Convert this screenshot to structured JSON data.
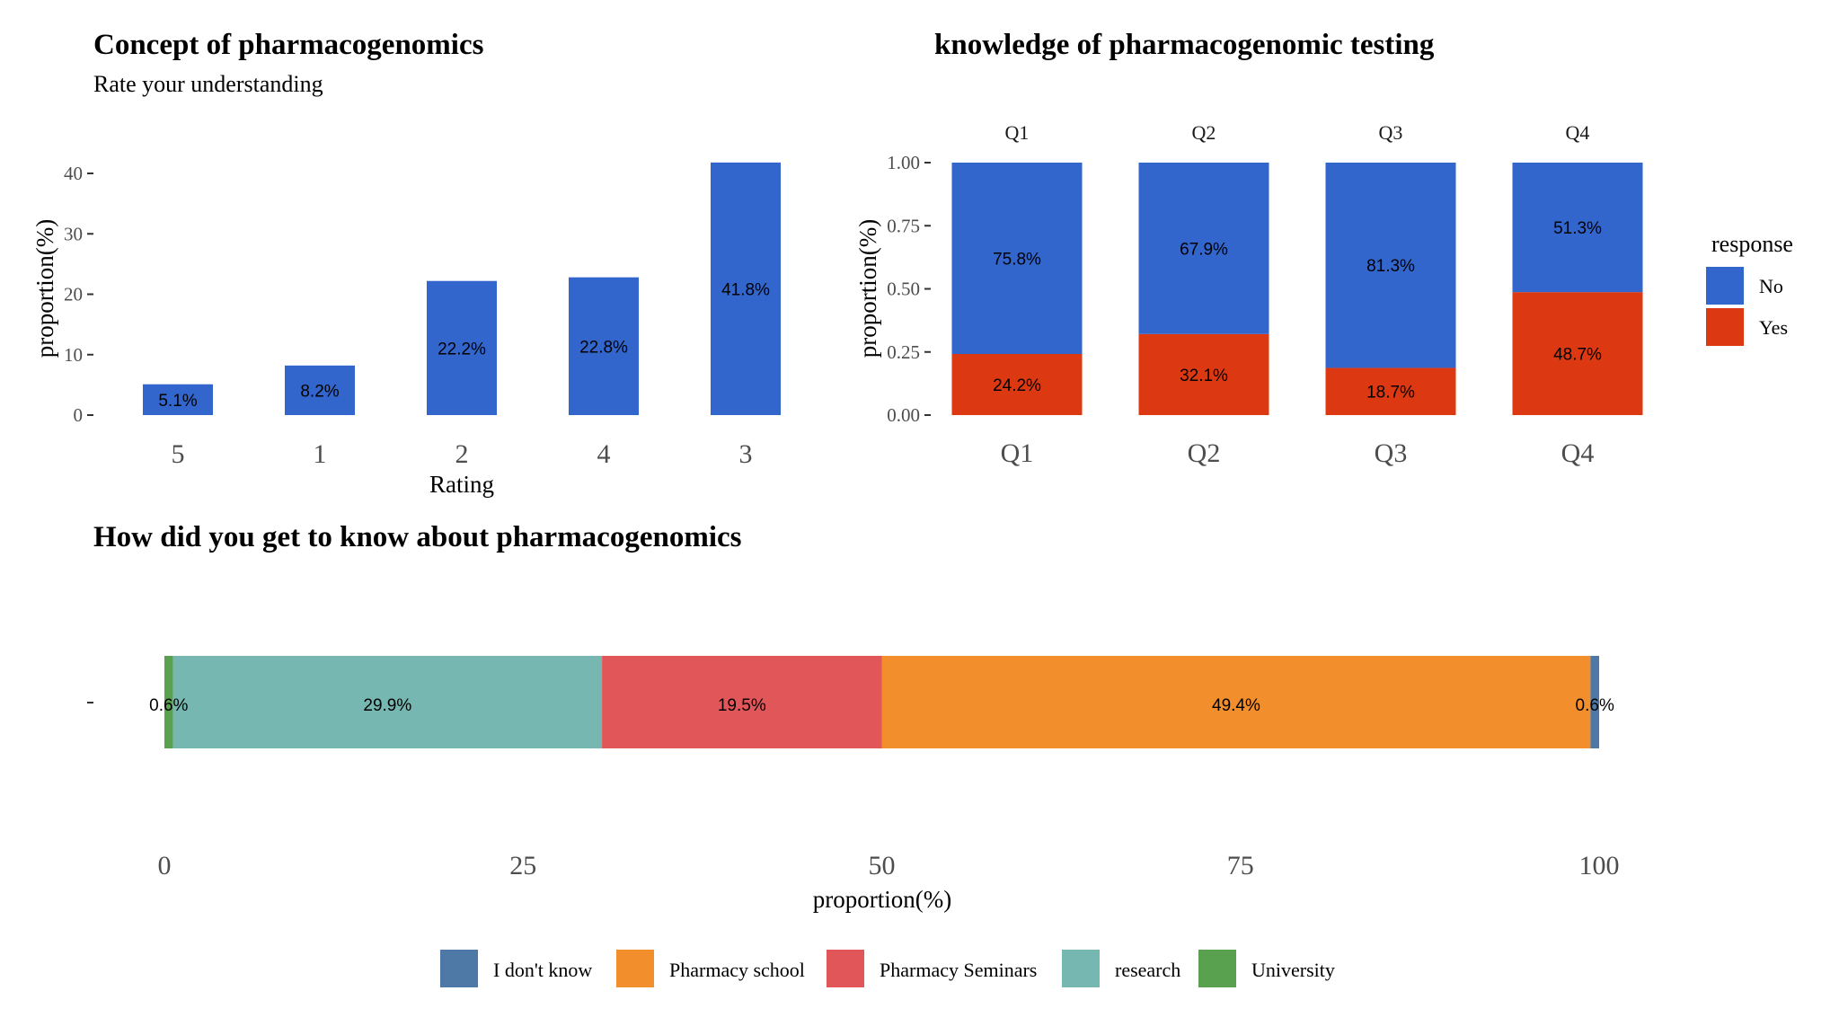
{
  "chart_data": [
    {
      "id": "rating",
      "type": "bar",
      "title": "Concept of pharmacogenomics",
      "subtitle": "Rate your understanding",
      "xlabel": "Rating",
      "ylabel": "proportion(%)",
      "categories": [
        "5",
        "1",
        "2",
        "4",
        "3"
      ],
      "values": [
        5.1,
        8.2,
        22.2,
        22.8,
        41.8
      ],
      "labels": [
        "5.1%",
        "8.2%",
        "22.2%",
        "22.8%",
        "41.8%"
      ],
      "yticks": [
        0,
        10,
        20,
        30,
        40
      ],
      "ylim": [
        0,
        41.8
      ],
      "color": "#3366CC",
      "grid": false
    },
    {
      "id": "knowledge",
      "type": "bar",
      "stacked": true,
      "title": "knowledge of pharmacogenomic testing",
      "xlabel": "",
      "ylabel": "proportion(%)",
      "facet_labels": [
        "Q1",
        "Q2",
        "Q3",
        "Q4"
      ],
      "categories": [
        "Q1",
        "Q2",
        "Q3",
        "Q4"
      ],
      "series": [
        {
          "name": "Yes",
          "color": "#DC3912",
          "values": [
            0.242,
            0.321,
            0.187,
            0.487
          ],
          "labels": [
            "24.2%",
            "32.1%",
            "18.7%",
            "48.7%"
          ]
        },
        {
          "name": "No",
          "color": "#3366CC",
          "values": [
            0.758,
            0.679,
            0.813,
            0.513
          ],
          "labels": [
            "75.8%",
            "67.9%",
            "81.3%",
            "51.3%"
          ]
        }
      ],
      "yticks": [
        "0.00",
        "0.25",
        "0.50",
        "0.75",
        "1.00"
      ],
      "ylim": [
        0,
        1
      ],
      "legend": {
        "title": "response",
        "items": [
          {
            "name": "No",
            "color": "#3366CC"
          },
          {
            "name": "Yes",
            "color": "#DC3912"
          }
        ],
        "position": "right"
      },
      "grid": false
    },
    {
      "id": "source",
      "type": "bar",
      "orientation": "horizontal",
      "stacked": true,
      "title": "How did you get to know about pharmacogenomics",
      "xlabel": "proportion(%)",
      "ylabel": "",
      "y_tick_label": "",
      "series": [
        {
          "name": "University",
          "color": "#59A14F",
          "value": 0.6,
          "label": "0.6%"
        },
        {
          "name": "research",
          "color": "#76B7B2",
          "value": 29.9,
          "label": "29.9%"
        },
        {
          "name": "Pharmacy Seminars",
          "color": "#E15759",
          "value": 19.5,
          "label": "19.5%"
        },
        {
          "name": "Pharmacy school",
          "color": "#F28E2B",
          "value": 49.4,
          "label": "49.4%"
        },
        {
          "name": "I don't know",
          "color": "#4E79A7",
          "value": 0.6,
          "label": "0.6%"
        }
      ],
      "xticks": [
        0,
        25,
        50,
        75,
        100
      ],
      "xlim": [
        0,
        100
      ],
      "legend": {
        "position": "bottom",
        "items": [
          {
            "name": "I don't know",
            "color": "#4E79A7"
          },
          {
            "name": "Pharmacy school",
            "color": "#F28E2B"
          },
          {
            "name": "Pharmacy Seminars",
            "color": "#E15759"
          },
          {
            "name": "research",
            "color": "#76B7B2"
          },
          {
            "name": "University",
            "color": "#59A14F"
          }
        ]
      },
      "grid": false
    }
  ]
}
